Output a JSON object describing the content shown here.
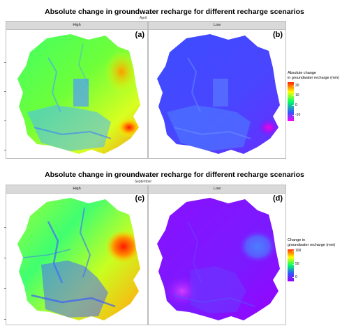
{
  "figure1": {
    "title": "Absolute change in groundwater recharge for different recharge scenarios",
    "subtitle": "April",
    "panels": [
      {
        "strip": "High",
        "letter": "(a)"
      },
      {
        "strip": "Low",
        "letter": "(b)"
      }
    ],
    "legend": {
      "title_line1": "Absolute change",
      "title_line2": "in groundwater recharge (mm)",
      "ticks": [
        "20",
        "10",
        "0",
        "-10"
      ]
    }
  },
  "figure2": {
    "title": "Absolute change in groundwater recharge for different recharge scenarios",
    "subtitle": "September",
    "panels": [
      {
        "strip": "High",
        "letter": "(c)"
      },
      {
        "strip": "Low",
        "letter": "(d)"
      }
    ],
    "legend": {
      "title_line1": "Change in",
      "title_line2": "groundwater recharge (mm)",
      "ticks": [
        "100",
        "50",
        "0"
      ]
    }
  },
  "colors": {
    "strip_bg": "#d9d9d9",
    "panel_border": "#bdbdbd",
    "scale_red": "#ff2200",
    "scale_yellow": "#ffff00",
    "scale_green": "#00ff66",
    "scale_blue": "#3355ff",
    "scale_purple": "#8800ff",
    "scale_magenta": "#ff00ff"
  }
}
